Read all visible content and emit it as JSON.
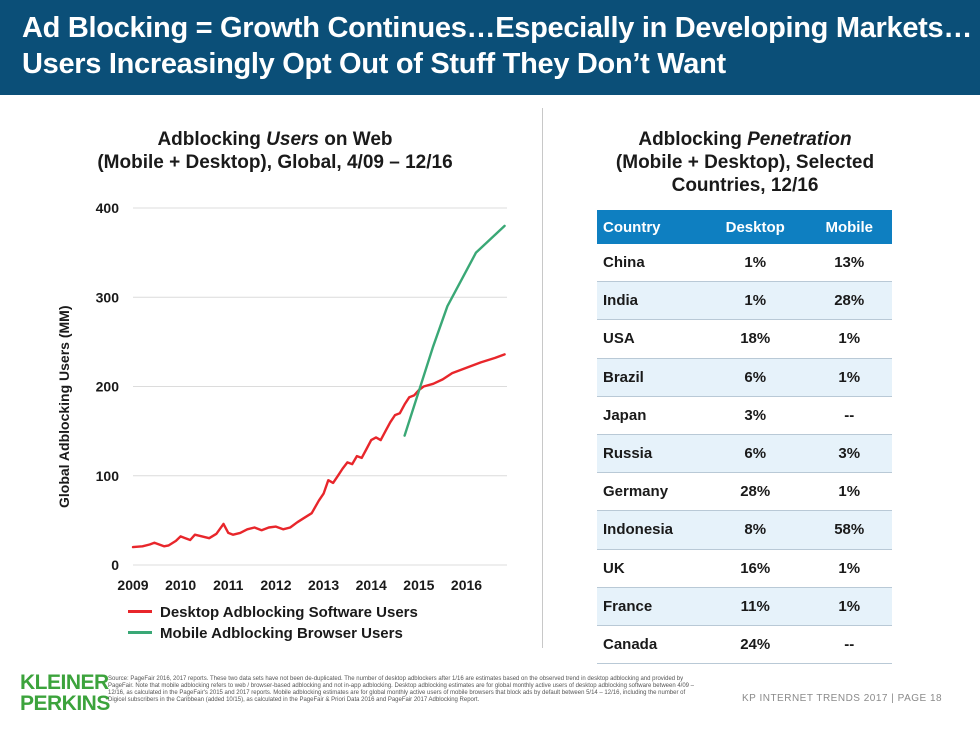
{
  "header": {
    "title_line1": "Ad Blocking = Growth Continues…Especially in Developing Markets…",
    "title_line2": "Users Increasingly Opt Out of Stuff They Don’t Want"
  },
  "left_panel": {
    "title_line1_pre": "Adblocking ",
    "title_line1_em": "Users",
    "title_line1_post": " on Web",
    "title_line2": "(Mobile + Desktop), Global, 4/09 – 12/16"
  },
  "chart_data": {
    "type": "line",
    "ylabel": "Global Adblocking Users (MM)",
    "xlabel": "",
    "ylim": [
      0,
      400
    ],
    "xlim": [
      2009.0,
      2016.85
    ],
    "yticks": [
      0,
      100,
      200,
      300,
      400
    ],
    "xticks": [
      2009,
      2010,
      2011,
      2012,
      2013,
      2014,
      2015,
      2016
    ],
    "grid": true,
    "legend_position": "bottom-left",
    "series": [
      {
        "name": "Desktop Adblocking Software Users",
        "color": "#e8262b",
        "points": [
          [
            2009.0,
            20
          ],
          [
            2009.2,
            21
          ],
          [
            2009.35,
            23
          ],
          [
            2009.45,
            25
          ],
          [
            2009.55,
            23
          ],
          [
            2009.65,
            21
          ],
          [
            2009.75,
            22
          ],
          [
            2009.9,
            27
          ],
          [
            2010.0,
            32
          ],
          [
            2010.1,
            30
          ],
          [
            2010.2,
            28
          ],
          [
            2010.3,
            34
          ],
          [
            2010.45,
            32
          ],
          [
            2010.6,
            30
          ],
          [
            2010.75,
            35
          ],
          [
            2010.9,
            46
          ],
          [
            2011.0,
            36
          ],
          [
            2011.1,
            34
          ],
          [
            2011.25,
            36
          ],
          [
            2011.4,
            40
          ],
          [
            2011.55,
            42
          ],
          [
            2011.7,
            39
          ],
          [
            2011.85,
            42
          ],
          [
            2012.0,
            43
          ],
          [
            2012.15,
            40
          ],
          [
            2012.3,
            42
          ],
          [
            2012.45,
            48
          ],
          [
            2012.6,
            53
          ],
          [
            2012.75,
            58
          ],
          [
            2012.9,
            72
          ],
          [
            2013.0,
            80
          ],
          [
            2013.1,
            95
          ],
          [
            2013.2,
            92
          ],
          [
            2013.3,
            100
          ],
          [
            2013.4,
            108
          ],
          [
            2013.5,
            115
          ],
          [
            2013.6,
            113
          ],
          [
            2013.7,
            122
          ],
          [
            2013.8,
            120
          ],
          [
            2013.9,
            130
          ],
          [
            2014.0,
            140
          ],
          [
            2014.1,
            143
          ],
          [
            2014.2,
            140
          ],
          [
            2014.3,
            150
          ],
          [
            2014.4,
            160
          ],
          [
            2014.5,
            168
          ],
          [
            2014.6,
            170
          ],
          [
            2014.7,
            180
          ],
          [
            2014.8,
            188
          ],
          [
            2014.9,
            190
          ],
          [
            2015.0,
            196
          ],
          [
            2015.1,
            200
          ],
          [
            2015.3,
            203
          ],
          [
            2015.5,
            208
          ],
          [
            2015.7,
            215
          ],
          [
            2016.0,
            221
          ],
          [
            2016.3,
            227
          ],
          [
            2016.6,
            232
          ],
          [
            2016.8,
            236
          ]
        ]
      },
      {
        "name": "Mobile Adblocking Browser Users",
        "color": "#3aa876",
        "points": [
          [
            2014.7,
            145
          ],
          [
            2015.0,
            195
          ],
          [
            2015.3,
            245
          ],
          [
            2015.6,
            290
          ],
          [
            2015.9,
            320
          ],
          [
            2016.2,
            350
          ],
          [
            2016.5,
            365
          ],
          [
            2016.8,
            380
          ]
        ]
      }
    ]
  },
  "right_panel": {
    "title_line1_pre": "Adblocking ",
    "title_line1_em": "Penetration",
    "title_line2": "(Mobile + Desktop), Selected",
    "title_line3": "Countries, 12/16",
    "columns": [
      "Country",
      "Desktop",
      "Mobile"
    ],
    "rows": [
      [
        "China",
        "1%",
        "13%"
      ],
      [
        "India",
        "1%",
        "28%"
      ],
      [
        "USA",
        "18%",
        "1%"
      ],
      [
        "Brazil",
        "6%",
        "1%"
      ],
      [
        "Japan",
        "3%",
        "--"
      ],
      [
        "Russia",
        "6%",
        "3%"
      ],
      [
        "Germany",
        "28%",
        "1%"
      ],
      [
        "Indonesia",
        "8%",
        "58%"
      ],
      [
        "UK",
        "16%",
        "1%"
      ],
      [
        "France",
        "11%",
        "1%"
      ],
      [
        "Canada",
        "24%",
        "--"
      ]
    ]
  },
  "footer": {
    "logo_line1": "KLEINER",
    "logo_line2": "PERKINS",
    "source": "Source: PageFair 2016, 2017 reports. These two data sets have not been de-duplicated. The number of desktop adblockers after 1/16 are estimates based on the observed trend in desktop adblocking and provided by PageFair. Note that mobile adblocking refers to web / browser-based adblocking and not in-app adblocking. Desktop adblocking estimates are for global monthly active users of desktop adblocking software between 4/09 – 12/16, as calculated in the PageFair's 2015 and 2017 reports. Mobile adblocking estimates are for global monthly active users of mobile browsers that block ads by default between 5/14 – 12/16, including the number of Digicel subscribers in the Caribbean (added 10/15), as calculated in the PageFair & Priori Data 2016 and PageFair 2017 Adblocking Report.",
    "right_text": "KP INTERNET TRENDS 2017  |  PAGE 18"
  }
}
